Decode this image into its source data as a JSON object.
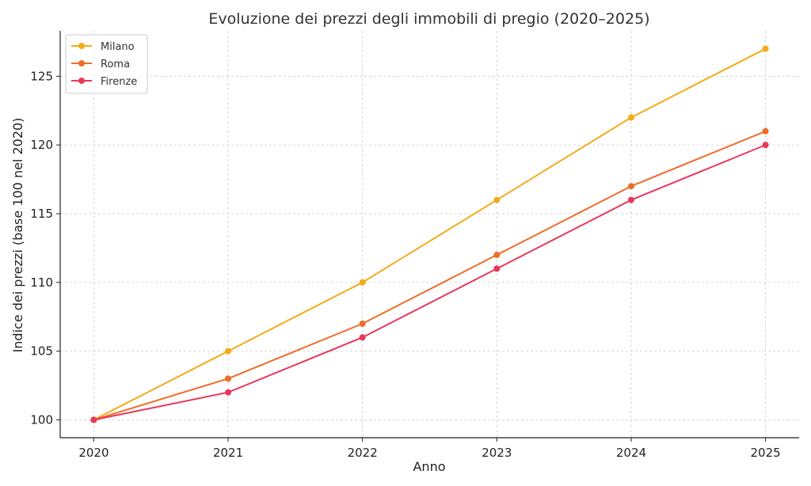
{
  "chart_data": {
    "type": "line",
    "title": "Evoluzione dei prezzi degli immobili di pregio (2020–2025)",
    "xlabel": "Anno",
    "ylabel": "Indice dei prezzi (base 100 nel 2020)",
    "x": [
      2020,
      2021,
      2022,
      2023,
      2024,
      2025
    ],
    "xlim": [
      2019.75,
      2025.25
    ],
    "ylim": [
      98.7,
      128.3
    ],
    "yticks": [
      100,
      105,
      110,
      115,
      120,
      125
    ],
    "grid": true,
    "legend_position": "top-left",
    "series": [
      {
        "name": "Milano",
        "color": "#f5aa17",
        "values": [
          100,
          105,
          110,
          116,
          122,
          127
        ]
      },
      {
        "name": "Roma",
        "color": "#ef6c2a",
        "values": [
          100,
          103,
          107,
          112,
          117,
          121
        ]
      },
      {
        "name": "Firenze",
        "color": "#e8385b",
        "values": [
          100,
          102,
          106,
          111,
          116,
          120
        ]
      }
    ]
  }
}
